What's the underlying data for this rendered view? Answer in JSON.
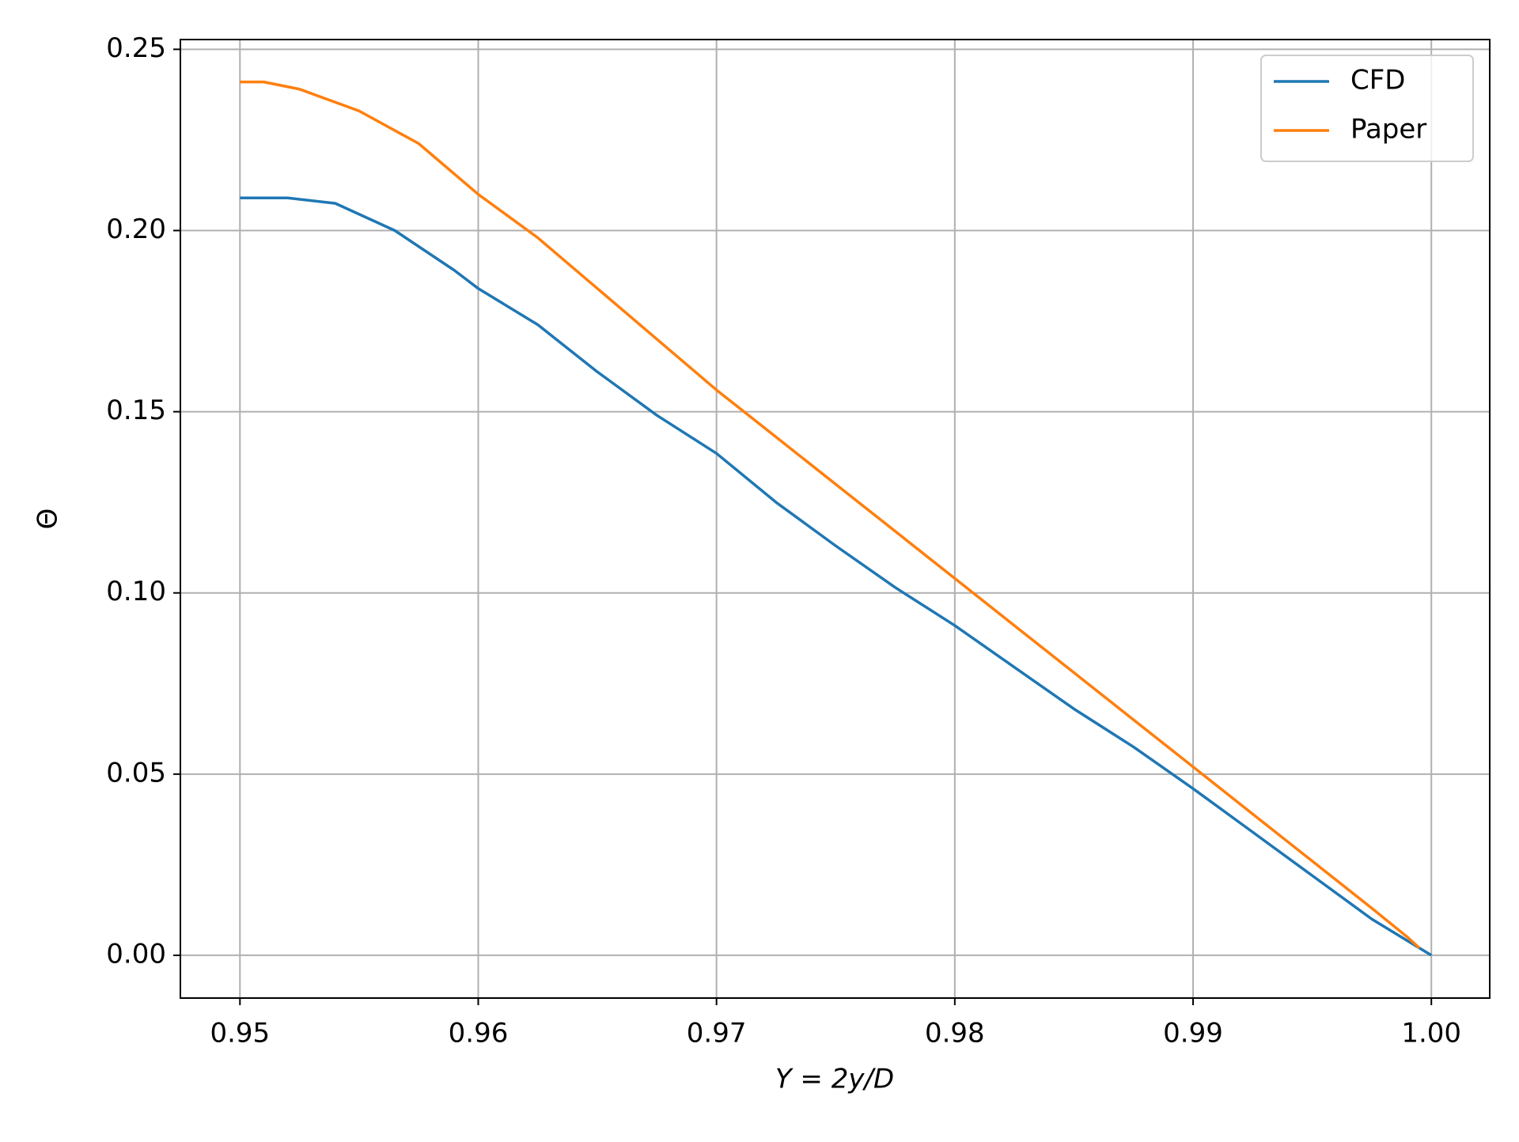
{
  "chart_data": {
    "type": "line",
    "xlabel": "Y = 2y/D",
    "ylabel": "Θ",
    "xlim": [
      0.9475,
      1.00245
    ],
    "ylim": [
      -0.0118,
      0.2527
    ],
    "xticks": [
      0.95,
      0.96,
      0.97,
      0.98,
      0.99,
      {
        "value": 1,
        "label": "1.00"
      }
    ],
    "yticks": [
      {
        "value": 0,
        "label": "0.00"
      },
      0.05,
      {
        "value": 0.1,
        "label": "0.10"
      },
      0.15,
      {
        "value": 0.2,
        "label": "0.20"
      },
      0.25
    ],
    "grid": true,
    "legend": "upper right",
    "series": [
      {
        "name": "CFD",
        "color": "#1f77b4",
        "x": [
          0.95,
          0.952,
          0.954,
          0.9565,
          0.959,
          0.96,
          0.9625,
          0.965,
          0.9675,
          0.97,
          0.9725,
          0.975,
          0.9775,
          0.98,
          0.9825,
          0.985,
          0.9875,
          0.99,
          0.9925,
          0.995,
          0.9975,
          1.0
        ],
        "values": [
          0.209,
          0.209,
          0.2075,
          0.2,
          0.189,
          0.184,
          0.174,
          0.161,
          0.149,
          0.1385,
          0.125,
          0.113,
          0.1015,
          0.091,
          0.0795,
          0.068,
          0.0575,
          0.046,
          0.034,
          0.022,
          0.01,
          0.0
        ]
      },
      {
        "name": "Paper",
        "color": "#ff7f0e",
        "x": [
          0.95,
          0.951,
          0.9525,
          0.955,
          0.9575,
          0.96,
          0.9625,
          0.965,
          0.9675,
          0.97,
          0.9725,
          0.975,
          0.9775,
          0.98,
          0.9825,
          0.985,
          0.9875,
          0.99,
          0.9925,
          0.995,
          0.9975,
          0.999,
          0.9995
        ],
        "values": [
          0.241,
          0.241,
          0.239,
          0.233,
          0.224,
          0.21,
          0.198,
          0.184,
          0.17,
          0.156,
          0.143,
          0.13,
          0.117,
          0.104,
          0.091,
          0.078,
          0.065,
          0.052,
          0.039,
          0.026,
          0.013,
          0.005,
          0.002
        ]
      }
    ]
  }
}
